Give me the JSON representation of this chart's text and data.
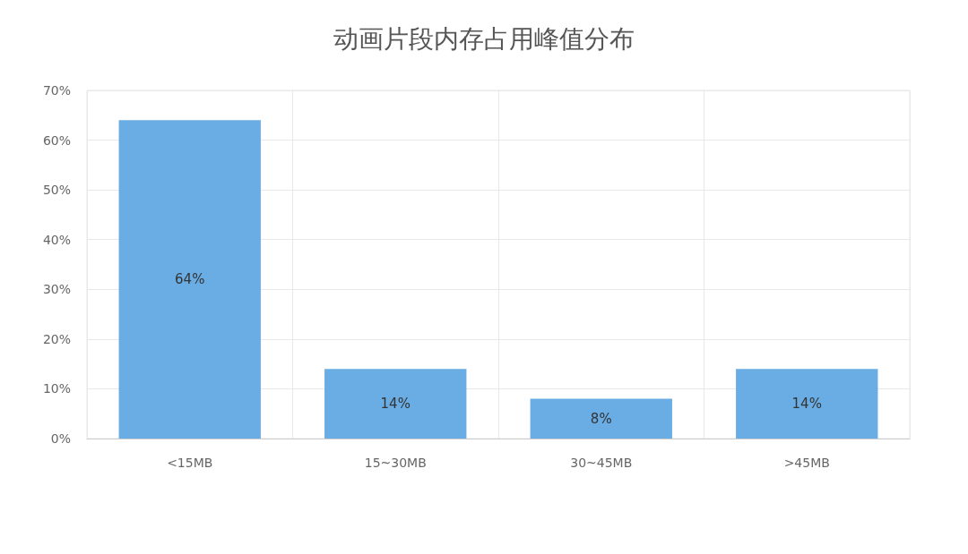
{
  "chart_data": {
    "type": "bar",
    "title": "动画片段内存占用峰值分布",
    "categories": [
      "<15MB",
      "15~30MB",
      "30~45MB",
      ">45MB"
    ],
    "values": [
      64,
      14,
      8,
      14
    ],
    "color": "#6aade4",
    "value_labels": [
      "64%",
      "14%",
      "8%",
      "14%"
    ],
    "ylim": [
      0,
      70
    ],
    "yticks": [
      {
        "value": 0,
        "label": "0%"
      },
      {
        "value": 10,
        "label": "10%"
      },
      {
        "value": 20,
        "label": "20%"
      },
      {
        "value": 30,
        "label": "30%"
      },
      {
        "value": 40,
        "label": "40%"
      },
      {
        "value": 50,
        "label": "50%"
      },
      {
        "value": 60,
        "label": "60%"
      },
      {
        "value": 70,
        "label": "70%"
      }
    ],
    "grid": true
  }
}
